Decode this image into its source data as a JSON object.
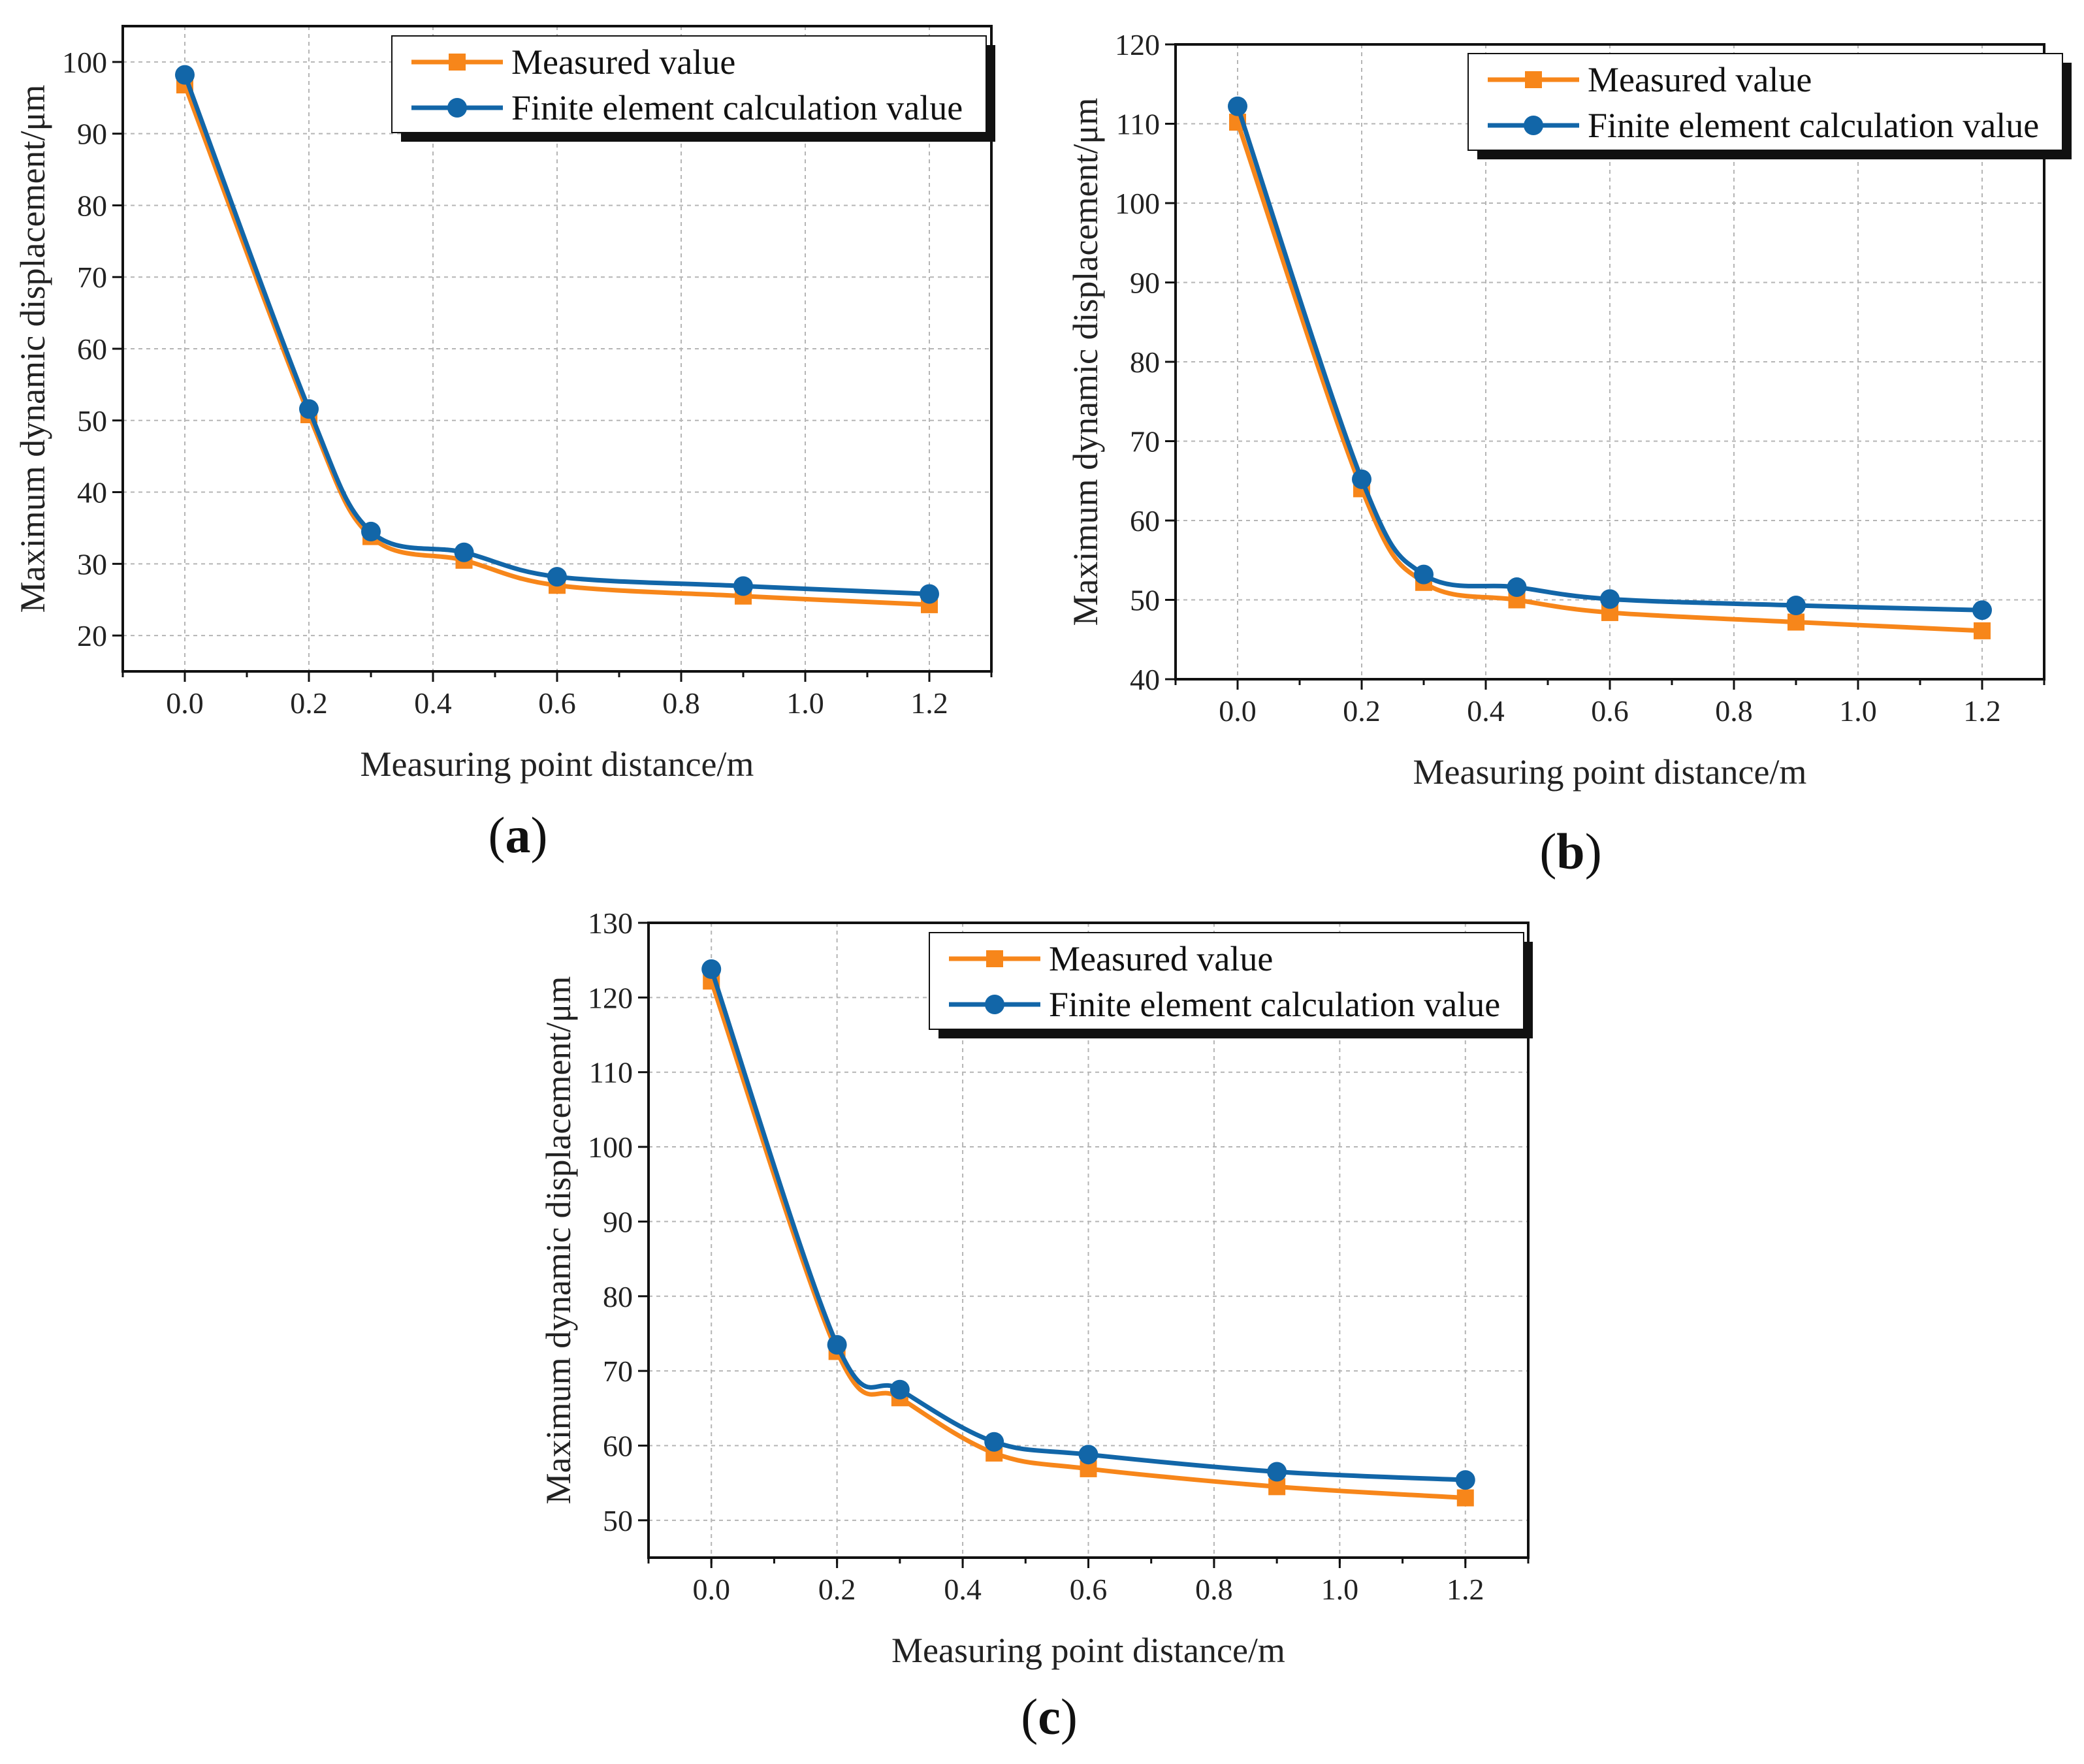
{
  "colors": {
    "measured": "#F7861A",
    "fem": "#1266A8",
    "grid": "#b5b5b5",
    "axis": "#111111"
  },
  "chart_data": [
    {
      "type": "line",
      "panel": "a",
      "panel_label": "a",
      "xlabel": "Measuring point distance/m",
      "ylabel": "Maximum dynamic displacement/μm",
      "xlim": [
        -0.1,
        1.3
      ],
      "ylim": [
        15,
        105
      ],
      "x_ticks": [
        "0.0",
        "0.2",
        "0.4",
        "0.6",
        "0.8",
        "1.0",
        "1.2"
      ],
      "y_ticks": [
        "20",
        "30",
        "40",
        "50",
        "60",
        "70",
        "80",
        "90",
        "100"
      ],
      "x": [
        0.0,
        0.2,
        0.3,
        0.45,
        0.6,
        0.9,
        1.2
      ],
      "series": [
        {
          "name": "Measured value",
          "marker": "square",
          "values": [
            96.8,
            50.8,
            33.8,
            30.5,
            27.0,
            25.5,
            24.3
          ]
        },
        {
          "name": "Finite element calculation value",
          "marker": "circle",
          "values": [
            98.2,
            51.6,
            34.5,
            31.6,
            28.2,
            26.9,
            25.8
          ]
        }
      ]
    },
    {
      "type": "line",
      "panel": "b",
      "panel_label": "b",
      "xlabel": "Measuring point distance/m",
      "ylabel": "Maximum dynamic displacement/μm",
      "xlim": [
        -0.1,
        1.3
      ],
      "ylim": [
        40,
        120
      ],
      "x_ticks": [
        "0.0",
        "0.2",
        "0.4",
        "0.6",
        "0.8",
        "1.0",
        "1.2"
      ],
      "y_ticks": [
        "40",
        "50",
        "60",
        "70",
        "80",
        "90",
        "100",
        "110",
        "120"
      ],
      "x": [
        0.0,
        0.2,
        0.3,
        0.45,
        0.6,
        0.9,
        1.2
      ],
      "series": [
        {
          "name": "Measured value",
          "marker": "square",
          "values": [
            110.2,
            64.0,
            52.2,
            50.0,
            48.4,
            47.2,
            46.1
          ]
        },
        {
          "name": "Finite element calculation value",
          "marker": "circle",
          "values": [
            112.2,
            65.2,
            53.2,
            51.6,
            50.1,
            49.3,
            48.7
          ]
        }
      ]
    },
    {
      "type": "line",
      "panel": "c",
      "panel_label": "c",
      "xlabel": "Measuring point distance/m",
      "ylabel": "Maximum dynamic displacement/μm",
      "xlim": [
        -0.1,
        1.3
      ],
      "ylim": [
        45,
        130
      ],
      "x_ticks": [
        "0.0",
        "0.2",
        "0.4",
        "0.6",
        "0.8",
        "1.0",
        "1.2"
      ],
      "y_ticks": [
        "50",
        "60",
        "70",
        "80",
        "90",
        "100",
        "110",
        "120",
        "130"
      ],
      "x": [
        0.0,
        0.2,
        0.3,
        0.45,
        0.6,
        0.9,
        1.2
      ],
      "series": [
        {
          "name": "Measured value",
          "marker": "square",
          "values": [
            122.2,
            72.6,
            66.4,
            59.0,
            56.9,
            54.5,
            53.0
          ]
        },
        {
          "name": "Finite element calculation value",
          "marker": "circle",
          "values": [
            123.8,
            73.5,
            67.5,
            60.5,
            58.8,
            56.5,
            55.4
          ]
        }
      ]
    }
  ]
}
